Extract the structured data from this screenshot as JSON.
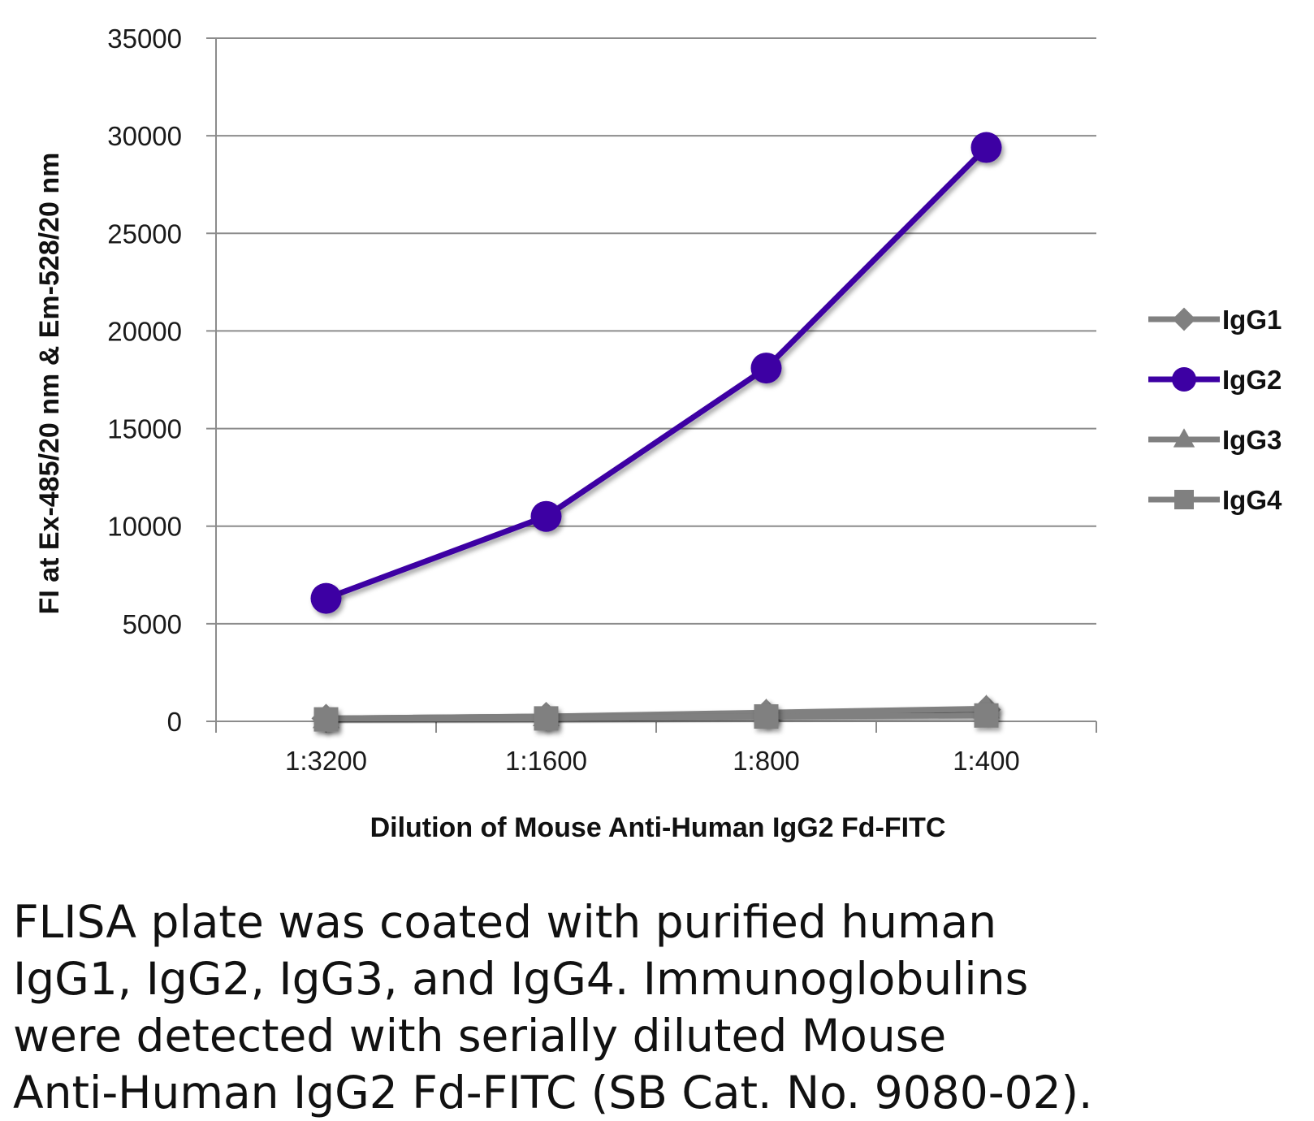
{
  "chart_data": {
    "type": "line",
    "title": "",
    "xlabel": "Dilution of Mouse Anti-Human IgG2 Fd-FITC",
    "ylabel": "FI at Ex-485/20 nm & Em-528/20 nm",
    "categories": [
      "1:3200",
      "1:1600",
      "1:800",
      "1:400"
    ],
    "ylim": [
      0,
      35000
    ],
    "yticks": [
      0,
      5000,
      10000,
      15000,
      20000,
      25000,
      30000,
      35000
    ],
    "grid": "horizontal",
    "legend_position": "right",
    "series": [
      {
        "name": "IgG1",
        "marker": "diamond",
        "color": "#808080",
        "values": [
          150,
          250,
          400,
          600
        ]
      },
      {
        "name": "IgG2",
        "marker": "circle",
        "color": "#3d00a3",
        "values": [
          6300,
          10500,
          18100,
          29400
        ]
      },
      {
        "name": "IgG3",
        "marker": "triangle",
        "color": "#808080",
        "values": [
          150,
          250,
          450,
          650
        ]
      },
      {
        "name": "IgG4",
        "marker": "square",
        "color": "#808080",
        "values": [
          100,
          150,
          250,
          300
        ]
      }
    ]
  },
  "caption": "FLISA plate was coated with purified human\nIgG1, IgG2, IgG3, and IgG4.  Immunoglobulins\nwere detected with serially diluted Mouse\nAnti-Human IgG2 Fd-FITC (SB Cat. No. 9080-02)."
}
